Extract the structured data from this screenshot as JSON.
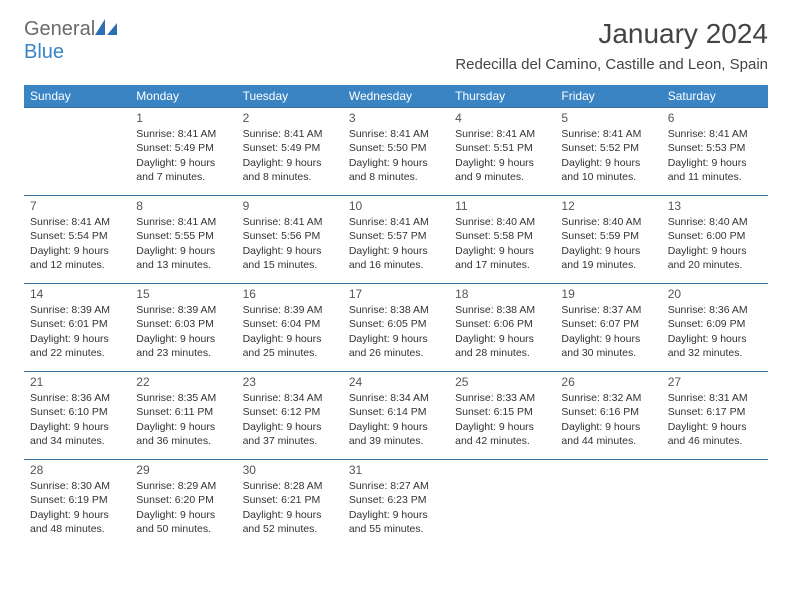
{
  "logo": {
    "general": "General",
    "blue": "Blue"
  },
  "title": "January 2024",
  "location": "Redecilla del Camino, Castille and Leon, Spain",
  "day_headers": [
    "Sunday",
    "Monday",
    "Tuesday",
    "Wednesday",
    "Thursday",
    "Friday",
    "Saturday"
  ],
  "colors": {
    "header_bg": "#3a84c4",
    "header_text": "#ffffff",
    "row_border": "#3a6fa0",
    "text": "#333333",
    "logo_gray": "#6b6b6b",
    "logo_blue": "#3a84c4"
  },
  "weeks": [
    [
      null,
      {
        "n": "1",
        "sr": "Sunrise: 8:41 AM",
        "ss": "Sunset: 5:49 PM",
        "dl": "Daylight: 9 hours and 7 minutes."
      },
      {
        "n": "2",
        "sr": "Sunrise: 8:41 AM",
        "ss": "Sunset: 5:49 PM",
        "dl": "Daylight: 9 hours and 8 minutes."
      },
      {
        "n": "3",
        "sr": "Sunrise: 8:41 AM",
        "ss": "Sunset: 5:50 PM",
        "dl": "Daylight: 9 hours and 8 minutes."
      },
      {
        "n": "4",
        "sr": "Sunrise: 8:41 AM",
        "ss": "Sunset: 5:51 PM",
        "dl": "Daylight: 9 hours and 9 minutes."
      },
      {
        "n": "5",
        "sr": "Sunrise: 8:41 AM",
        "ss": "Sunset: 5:52 PM",
        "dl": "Daylight: 9 hours and 10 minutes."
      },
      {
        "n": "6",
        "sr": "Sunrise: 8:41 AM",
        "ss": "Sunset: 5:53 PM",
        "dl": "Daylight: 9 hours and 11 minutes."
      }
    ],
    [
      {
        "n": "7",
        "sr": "Sunrise: 8:41 AM",
        "ss": "Sunset: 5:54 PM",
        "dl": "Daylight: 9 hours and 12 minutes."
      },
      {
        "n": "8",
        "sr": "Sunrise: 8:41 AM",
        "ss": "Sunset: 5:55 PM",
        "dl": "Daylight: 9 hours and 13 minutes."
      },
      {
        "n": "9",
        "sr": "Sunrise: 8:41 AM",
        "ss": "Sunset: 5:56 PM",
        "dl": "Daylight: 9 hours and 15 minutes."
      },
      {
        "n": "10",
        "sr": "Sunrise: 8:41 AM",
        "ss": "Sunset: 5:57 PM",
        "dl": "Daylight: 9 hours and 16 minutes."
      },
      {
        "n": "11",
        "sr": "Sunrise: 8:40 AM",
        "ss": "Sunset: 5:58 PM",
        "dl": "Daylight: 9 hours and 17 minutes."
      },
      {
        "n": "12",
        "sr": "Sunrise: 8:40 AM",
        "ss": "Sunset: 5:59 PM",
        "dl": "Daylight: 9 hours and 19 minutes."
      },
      {
        "n": "13",
        "sr": "Sunrise: 8:40 AM",
        "ss": "Sunset: 6:00 PM",
        "dl": "Daylight: 9 hours and 20 minutes."
      }
    ],
    [
      {
        "n": "14",
        "sr": "Sunrise: 8:39 AM",
        "ss": "Sunset: 6:01 PM",
        "dl": "Daylight: 9 hours and 22 minutes."
      },
      {
        "n": "15",
        "sr": "Sunrise: 8:39 AM",
        "ss": "Sunset: 6:03 PM",
        "dl": "Daylight: 9 hours and 23 minutes."
      },
      {
        "n": "16",
        "sr": "Sunrise: 8:39 AM",
        "ss": "Sunset: 6:04 PM",
        "dl": "Daylight: 9 hours and 25 minutes."
      },
      {
        "n": "17",
        "sr": "Sunrise: 8:38 AM",
        "ss": "Sunset: 6:05 PM",
        "dl": "Daylight: 9 hours and 26 minutes."
      },
      {
        "n": "18",
        "sr": "Sunrise: 8:38 AM",
        "ss": "Sunset: 6:06 PM",
        "dl": "Daylight: 9 hours and 28 minutes."
      },
      {
        "n": "19",
        "sr": "Sunrise: 8:37 AM",
        "ss": "Sunset: 6:07 PM",
        "dl": "Daylight: 9 hours and 30 minutes."
      },
      {
        "n": "20",
        "sr": "Sunrise: 8:36 AM",
        "ss": "Sunset: 6:09 PM",
        "dl": "Daylight: 9 hours and 32 minutes."
      }
    ],
    [
      {
        "n": "21",
        "sr": "Sunrise: 8:36 AM",
        "ss": "Sunset: 6:10 PM",
        "dl": "Daylight: 9 hours and 34 minutes."
      },
      {
        "n": "22",
        "sr": "Sunrise: 8:35 AM",
        "ss": "Sunset: 6:11 PM",
        "dl": "Daylight: 9 hours and 36 minutes."
      },
      {
        "n": "23",
        "sr": "Sunrise: 8:34 AM",
        "ss": "Sunset: 6:12 PM",
        "dl": "Daylight: 9 hours and 37 minutes."
      },
      {
        "n": "24",
        "sr": "Sunrise: 8:34 AM",
        "ss": "Sunset: 6:14 PM",
        "dl": "Daylight: 9 hours and 39 minutes."
      },
      {
        "n": "25",
        "sr": "Sunrise: 8:33 AM",
        "ss": "Sunset: 6:15 PM",
        "dl": "Daylight: 9 hours and 42 minutes."
      },
      {
        "n": "26",
        "sr": "Sunrise: 8:32 AM",
        "ss": "Sunset: 6:16 PM",
        "dl": "Daylight: 9 hours and 44 minutes."
      },
      {
        "n": "27",
        "sr": "Sunrise: 8:31 AM",
        "ss": "Sunset: 6:17 PM",
        "dl": "Daylight: 9 hours and 46 minutes."
      }
    ],
    [
      {
        "n": "28",
        "sr": "Sunrise: 8:30 AM",
        "ss": "Sunset: 6:19 PM",
        "dl": "Daylight: 9 hours and 48 minutes."
      },
      {
        "n": "29",
        "sr": "Sunrise: 8:29 AM",
        "ss": "Sunset: 6:20 PM",
        "dl": "Daylight: 9 hours and 50 minutes."
      },
      {
        "n": "30",
        "sr": "Sunrise: 8:28 AM",
        "ss": "Sunset: 6:21 PM",
        "dl": "Daylight: 9 hours and 52 minutes."
      },
      {
        "n": "31",
        "sr": "Sunrise: 8:27 AM",
        "ss": "Sunset: 6:23 PM",
        "dl": "Daylight: 9 hours and 55 minutes."
      },
      null,
      null,
      null
    ]
  ]
}
